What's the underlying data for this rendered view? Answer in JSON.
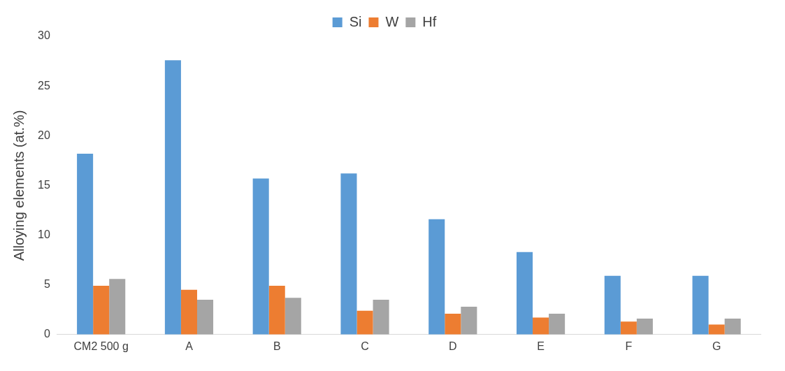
{
  "chart_data": {
    "type": "bar",
    "ylabel": "Alloying elements (at.%)",
    "categories": [
      "CM2 500 g",
      "A",
      "B",
      "C",
      "D",
      "E",
      "F",
      "G"
    ],
    "series": [
      {
        "name": "Si",
        "color": "#5b9bd5",
        "values": [
          18.2,
          27.6,
          15.7,
          16.2,
          11.6,
          8.3,
          5.9,
          5.9
        ]
      },
      {
        "name": "W",
        "color": "#ed7d31",
        "values": [
          4.9,
          4.5,
          4.9,
          2.4,
          2.1,
          1.7,
          1.3,
          1.0
        ]
      },
      {
        "name": "Hf",
        "color": "#a5a5a5",
        "values": [
          5.6,
          3.5,
          3.7,
          3.5,
          2.8,
          2.1,
          1.6,
          1.6
        ]
      }
    ],
    "ylim": [
      0,
      30
    ],
    "yticks": [
      0,
      5,
      10,
      15,
      20,
      25,
      30
    ],
    "grid": false,
    "legend": "top"
  }
}
